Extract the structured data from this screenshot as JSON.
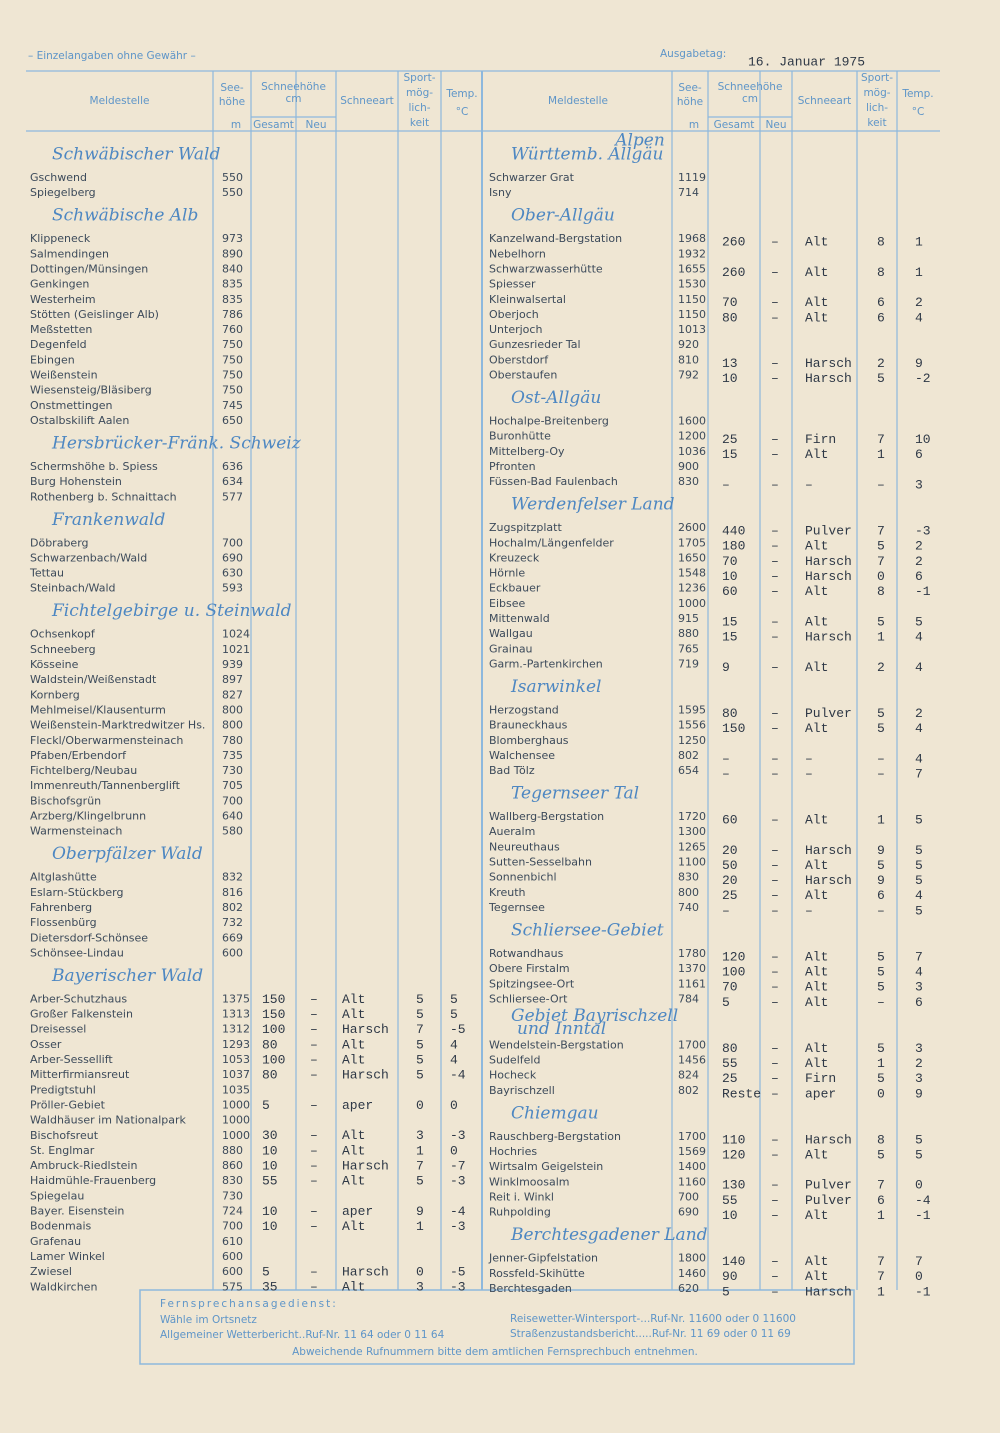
{
  "header": {
    "note": "– Einzelangaben ohne Gewähr –",
    "date_label": "Ausgabetag:",
    "date": "16. Januar 1975"
  },
  "columns": {
    "station": "Meldestelle",
    "elevation": [
      "See-",
      "höhe"
    ],
    "elevation_unit": "m",
    "snow": "Schneehöhe",
    "snow_unit": "cm",
    "total": "Gesamt",
    "new": "Neu",
    "type": "Schneeart",
    "sport": [
      "Sport-",
      "mög-",
      "lich-",
      "keit"
    ],
    "temp": [
      "Temp.",
      "°C"
    ]
  },
  "left": {
    "sections": [
      {
        "title": "Schwäbischer Wald",
        "rows": [
          {
            "n": "Gschwend",
            "m": 550
          },
          {
            "n": "Spiegelberg",
            "m": 550
          }
        ]
      },
      {
        "title": "Schwäbische Alb",
        "rows": [
          {
            "n": "Klippeneck",
            "m": 973
          },
          {
            "n": "Salmendingen",
            "m": 890
          },
          {
            "n": "Dottingen/Münsingen",
            "m": 840
          },
          {
            "n": "Genkingen",
            "m": 835
          },
          {
            "n": "Westerheim",
            "m": 835
          },
          {
            "n": "Stötten (Geislinger Alb)",
            "m": 786
          },
          {
            "n": "Meßstetten",
            "m": 760
          },
          {
            "n": "Degenfeld",
            "m": 750
          },
          {
            "n": "Ebingen",
            "m": 750
          },
          {
            "n": "Weißenstein",
            "m": 750
          },
          {
            "n": "Wiesensteig/Bläsiberg",
            "m": 750
          },
          {
            "n": "Onstmettingen",
            "m": 745
          },
          {
            "n": "Ostalbskilift Aalen",
            "m": 650
          }
        ]
      },
      {
        "title": "Hersbrücker-Fränk. Schweiz",
        "rows": [
          {
            "n": "Schermshöhe b. Spiess",
            "m": 636
          },
          {
            "n": "Burg Hohenstein",
            "m": 634
          },
          {
            "n": "Rothenberg b. Schnaittach",
            "m": 577
          }
        ]
      },
      {
        "title": "Frankenwald",
        "rows": [
          {
            "n": "Döbraberg",
            "m": 700
          },
          {
            "n": "Schwarzenbach/Wald",
            "m": 690
          },
          {
            "n": "Tettau",
            "m": 630
          },
          {
            "n": "Steinbach/Wald",
            "m": 593
          }
        ]
      },
      {
        "title": "Fichtelgebirge u. Steinwald",
        "rows": [
          {
            "n": "Ochsenkopf",
            "m": 1024
          },
          {
            "n": "Schneeberg",
            "m": 1021
          },
          {
            "n": "Kösseine",
            "m": 939
          },
          {
            "n": "Waldstein/Weißenstadt",
            "m": 897
          },
          {
            "n": "Kornberg",
            "m": 827
          },
          {
            "n": "Mehlmeisel/Klausenturm",
            "m": 800
          },
          {
            "n": "Weißenstein-Marktredwitzer Hs.",
            "m": 800
          },
          {
            "n": "Fleckl/Oberwarmensteinach",
            "m": 780
          },
          {
            "n": "Pfaben/Erbendorf",
            "m": 735
          },
          {
            "n": "Fichtelberg/Neubau",
            "m": 730
          },
          {
            "n": "Immenreuth/Tannenberglift",
            "m": 705
          },
          {
            "n": "Bischofsgrün",
            "m": 700
          },
          {
            "n": "Arzberg/Klingelbrunn",
            "m": 640
          },
          {
            "n": "Warmensteinach",
            "m": 580
          }
        ]
      },
      {
        "title": "Oberpfälzer Wald",
        "rows": [
          {
            "n": "Altglashütte",
            "m": 832
          },
          {
            "n": "Eslarn-Stückberg",
            "m": 816
          },
          {
            "n": "Fahrenberg",
            "m": 802
          },
          {
            "n": "Flossenbürg",
            "m": 732
          },
          {
            "n": "Dietersdorf-Schönsee",
            "m": 669
          },
          {
            "n": "Schönsee-Lindau",
            "m": 600
          }
        ]
      },
      {
        "title": "Bayerischer Wald",
        "rows": [
          {
            "n": "Arber-Schutzhaus",
            "m": 1375,
            "g": 150,
            "u": "–",
            "a": "Alt",
            "s": 5,
            "t": 5
          },
          {
            "n": "Großer Falkenstein",
            "m": 1313,
            "g": 150,
            "u": "–",
            "a": "Alt",
            "s": 5,
            "t": 5
          },
          {
            "n": "Dreisessel",
            "m": 1312,
            "g": 100,
            "u": "–",
            "a": "Harsch",
            "s": 7,
            "t": -5
          },
          {
            "n": "Osser",
            "m": 1293,
            "g": 80,
            "u": "–",
            "a": "Alt",
            "s": 5,
            "t": 4
          },
          {
            "n": "Arber-Sessellift",
            "m": 1053,
            "g": 100,
            "u": "–",
            "a": "Alt",
            "s": 5,
            "t": 4
          },
          {
            "n": "Mitterfirmiansreut",
            "m": 1037,
            "g": 80,
            "u": "–",
            "a": "Harsch",
            "s": 5,
            "t": -4
          },
          {
            "n": "Predigtstuhl",
            "m": 1035
          },
          {
            "n": "Pröller-Gebiet",
            "m": 1000,
            "g": 5,
            "u": "–",
            "a": "aper",
            "s": 0,
            "t": 0
          },
          {
            "n": "Waldhäuser im Nationalpark",
            "m": 1000
          },
          {
            "n": "Bischofsreut",
            "m": 1000,
            "g": 30,
            "u": "–",
            "a": "Alt",
            "s": 3,
            "t": -3
          },
          {
            "n": "St. Englmar",
            "m": 880,
            "g": 10,
            "u": "–",
            "a": "Alt",
            "s": 1,
            "t": 0
          },
          {
            "n": "Ambruck-Riedlstein",
            "m": 860,
            "g": 10,
            "u": "–",
            "a": "Harsch",
            "s": 7,
            "t": -7
          },
          {
            "n": "Haidmühle-Frauenberg",
            "m": 830,
            "g": 55,
            "u": "–",
            "a": "Alt",
            "s": 5,
            "t": -3
          },
          {
            "n": "Spiegelau",
            "m": 730
          },
          {
            "n": "Bayer. Eisenstein",
            "m": 724,
            "g": 10,
            "u": "–",
            "a": "aper",
            "s": 9,
            "t": -4
          },
          {
            "n": "Bodenmais",
            "m": 700,
            "g": 10,
            "u": "–",
            "a": "Alt",
            "s": 1,
            "t": -3
          },
          {
            "n": "Grafenau",
            "m": 610
          },
          {
            "n": "Lamer Winkel",
            "m": 600
          },
          {
            "n": "Zwiesel",
            "m": 600,
            "g": 5,
            "u": "–",
            "a": "Harsch",
            "s": 0,
            "t": -5
          },
          {
            "n": "Waldkirchen",
            "m": 575,
            "g": 35,
            "u": "–",
            "a": "Alt",
            "s": 3,
            "t": -3
          }
        ]
      }
    ]
  },
  "right": {
    "region": "Alpen",
    "sections": [
      {
        "title": "Württemb. Allgäu",
        "rows": [
          {
            "n": "Schwarzer Grat",
            "m": 1119
          },
          {
            "n": "Isny",
            "m": 714
          }
        ]
      },
      {
        "title": "Ober-Allgäu",
        "rows": [
          {
            "n": "Kanzelwand-Bergstation",
            "m": 1968,
            "g": 260,
            "u": "–",
            "a": "Alt",
            "s": 8,
            "t": 1
          },
          {
            "n": "Nebelhorn",
            "m": 1932
          },
          {
            "n": "Schwarzwasserhütte",
            "m": 1655,
            "g": 260,
            "u": "–",
            "a": "Alt",
            "s": 8,
            "t": 1
          },
          {
            "n": "Spiesser",
            "m": 1530
          },
          {
            "n": "Kleinwalsertal",
            "m": 1150,
            "g": 70,
            "u": "–",
            "a": "Alt",
            "s": 6,
            "t": 2
          },
          {
            "n": "Oberjoch",
            "m": 1150,
            "g": 80,
            "u": "–",
            "a": "Alt",
            "s": 6,
            "t": 4
          },
          {
            "n": "Unterjoch",
            "m": 1013
          },
          {
            "n": "Gunzesrieder Tal",
            "m": 920
          },
          {
            "n": "Oberstdorf",
            "m": 810,
            "g": 13,
            "u": "–",
            "a": "Harsch",
            "s": 2,
            "t": 9
          },
          {
            "n": "Oberstaufen",
            "m": 792,
            "g": 10,
            "u": "–",
            "a": "Harsch",
            "s": 5,
            "t": -2
          }
        ]
      },
      {
        "title": "Ost-Allgäu",
        "rows": [
          {
            "n": "Hochalpe-Breitenberg",
            "m": 1600
          },
          {
            "n": "Buronhütte",
            "m": 1200,
            "g": 25,
            "u": "–",
            "a": "Firn",
            "s": 7,
            "t": 10
          },
          {
            "n": "Mittelberg-Oy",
            "m": 1036,
            "g": 15,
            "u": "–",
            "a": "Alt",
            "s": 1,
            "t": 6
          },
          {
            "n": "Pfronten",
            "m": 900
          },
          {
            "n": "Füssen-Bad Faulenbach",
            "m": 830,
            "g": "–",
            "u": "–",
            "a": "–",
            "s": "–",
            "t": 3
          }
        ]
      },
      {
        "title": "Werdenfelser Land",
        "rows": [
          {
            "n": "Zugspitzplatt",
            "m": 2600,
            "g": 440,
            "u": "–",
            "a": "Pulver",
            "s": 7,
            "t": -3
          },
          {
            "n": "Hochalm/Längenfelder",
            "m": 1705,
            "g": 180,
            "u": "–",
            "a": "Alt",
            "s": 5,
            "t": 2
          },
          {
            "n": "Kreuzeck",
            "m": 1650,
            "g": 70,
            "u": "–",
            "a": "Harsch",
            "s": 7,
            "t": 2
          },
          {
            "n": "Hörnle",
            "m": 1548,
            "g": 10,
            "u": "–",
            "a": "Harsch",
            "s": 0,
            "t": 6
          },
          {
            "n": "Eckbauer",
            "m": 1236,
            "g": 60,
            "u": "–",
            "a": "Alt",
            "s": 8,
            "t": -1
          },
          {
            "n": "Eibsee",
            "m": 1000
          },
          {
            "n": "Mittenwald",
            "m": 915,
            "g": 15,
            "u": "–",
            "a": "Alt",
            "s": 5,
            "t": 5
          },
          {
            "n": "Wallgau",
            "m": 880,
            "g": 15,
            "u": "–",
            "a": "Harsch",
            "s": 1,
            "t": 4
          },
          {
            "n": "Grainau",
            "m": 765
          },
          {
            "n": "Garm.-Partenkirchen",
            "m": 719,
            "g": 9,
            "u": "–",
            "a": "Alt",
            "s": 2,
            "t": 4
          }
        ]
      },
      {
        "title": "Isarwinkel",
        "rows": [
          {
            "n": "Herzogstand",
            "m": 1595,
            "g": 80,
            "u": "–",
            "a": "Pulver",
            "s": 5,
            "t": 2
          },
          {
            "n": "Brauneckhaus",
            "m": 1556,
            "g": 150,
            "u": "–",
            "a": "Alt",
            "s": 5,
            "t": 4
          },
          {
            "n": "Blomberghaus",
            "m": 1250
          },
          {
            "n": "Walchensee",
            "m": 802,
            "g": "–",
            "u": "–",
            "a": "–",
            "s": "–",
            "t": 4
          },
          {
            "n": "Bad Tölz",
            "m": 654,
            "g": "–",
            "u": "–",
            "a": "–",
            "s": "–",
            "t": 7
          }
        ]
      },
      {
        "title": "Tegernseer Tal",
        "rows": [
          {
            "n": "Wallberg-Bergstation",
            "m": 1720,
            "g": 60,
            "u": "–",
            "a": "Alt",
            "s": 1,
            "t": 5
          },
          {
            "n": "Aueralm",
            "m": 1300
          },
          {
            "n": "Neureuthaus",
            "m": 1265,
            "g": 20,
            "u": "–",
            "a": "Harsch",
            "s": 9,
            "t": 5
          },
          {
            "n": "Sutten-Sesselbahn",
            "m": 1100,
            "g": 50,
            "u": "–",
            "a": "Alt",
            "s": 5,
            "t": 5
          },
          {
            "n": "Sonnenbichl",
            "m": 830,
            "g": 20,
            "u": "–",
            "a": "Harsch",
            "s": 9,
            "t": 5
          },
          {
            "n": "Kreuth",
            "m": 800,
            "g": 25,
            "u": "–",
            "a": "Alt",
            "s": 6,
            "t": 4
          },
          {
            "n": "Tegernsee",
            "m": 740,
            "g": "–",
            "u": "–",
            "a": "–",
            "s": "–",
            "t": 5
          }
        ]
      },
      {
        "title": "Schliersee-Gebiet",
        "rows": [
          {
            "n": "Rotwandhaus",
            "m": 1780,
            "g": 120,
            "u": "–",
            "a": "Alt",
            "s": 5,
            "t": 7
          },
          {
            "n": "Obere Firstalm",
            "m": 1370,
            "g": 100,
            "u": "–",
            "a": "Alt",
            "s": 5,
            "t": 4
          },
          {
            "n": "Spitzingsee-Ort",
            "m": 1161,
            "g": 70,
            "u": "–",
            "a": "Alt",
            "s": 5,
            "t": 3
          },
          {
            "n": "Schliersee-Ort",
            "m": 784,
            "g": 5,
            "u": "–",
            "a": "Alt",
            "s": "–",
            "t": 6
          }
        ]
      },
      {
        "title": [
          "Gebiet Bayrischzell",
          "und Inntal"
        ],
        "rows": [
          {
            "n": "Wendelstein-Bergstation",
            "m": 1700,
            "g": 80,
            "u": "–",
            "a": "Alt",
            "s": 5,
            "t": 3
          },
          {
            "n": "Sudelfeld",
            "m": 1456,
            "g": 55,
            "u": "–",
            "a": "Alt",
            "s": 1,
            "t": 2
          },
          {
            "n": "Hocheck",
            "m": 824,
            "g": 25,
            "u": "–",
            "a": "Firn",
            "s": 5,
            "t": 3
          },
          {
            "n": "Bayrischzell",
            "m": 802,
            "g": "Reste",
            "u": "–",
            "a": "aper",
            "s": 0,
            "t": 9
          }
        ]
      },
      {
        "title": "Chiemgau",
        "rows": [
          {
            "n": "Rauschberg-Bergstation",
            "m": 1700,
            "g": 110,
            "u": "–",
            "a": "Harsch",
            "s": 8,
            "t": 5
          },
          {
            "n": "Hochries",
            "m": 1569,
            "g": 120,
            "u": "–",
            "a": "Alt",
            "s": 5,
            "t": 5
          },
          {
            "n": "Wirtsalm Geigelstein",
            "m": 1400
          },
          {
            "n": "Winklmoosalm",
            "m": 1160,
            "g": 130,
            "u": "–",
            "a": "Pulver",
            "s": 7,
            "t": 0
          },
          {
            "n": "Reit i. Winkl",
            "m": 700,
            "g": 55,
            "u": "–",
            "a": "Pulver",
            "s": 6,
            "t": -4
          },
          {
            "n": "Ruhpolding",
            "m": 690,
            "g": 10,
            "u": "–",
            "a": "Alt",
            "s": 1,
            "t": -1
          }
        ]
      },
      {
        "title": "Berchtesgadener Land",
        "rows": [
          {
            "n": "Jenner-Gipfelstation",
            "m": 1800,
            "g": 140,
            "u": "–",
            "a": "Alt",
            "s": 7,
            "t": 7
          },
          {
            "n": "Rossfeld-Skihütte",
            "m": 1460,
            "g": 90,
            "u": "–",
            "a": "Alt",
            "s": 7,
            "t": 0
          },
          {
            "n": "Berchtesgaden",
            "m": 620,
            "g": 5,
            "u": "–",
            "a": "Harsch",
            "s": 1,
            "t": -1
          }
        ]
      }
    ]
  },
  "footer": {
    "title": "Fernsprechansagedienst:",
    "dial": "Wähle im Ortsnetz",
    "weather": "Allgemeiner Wetterbericht..Ruf-Nr. 11 64 oder 0 11 64",
    "travel": "Reisewetter-Wintersport-...Ruf-Nr. 11600 oder 0 11600",
    "roads": "Straßenzustandsbericht.....Ruf-Nr. 11 69 oder 0 11 69",
    "note": "Abweichende Rufnummern bitte dem amtlichen Fernsprechbuch entnehmen."
  }
}
